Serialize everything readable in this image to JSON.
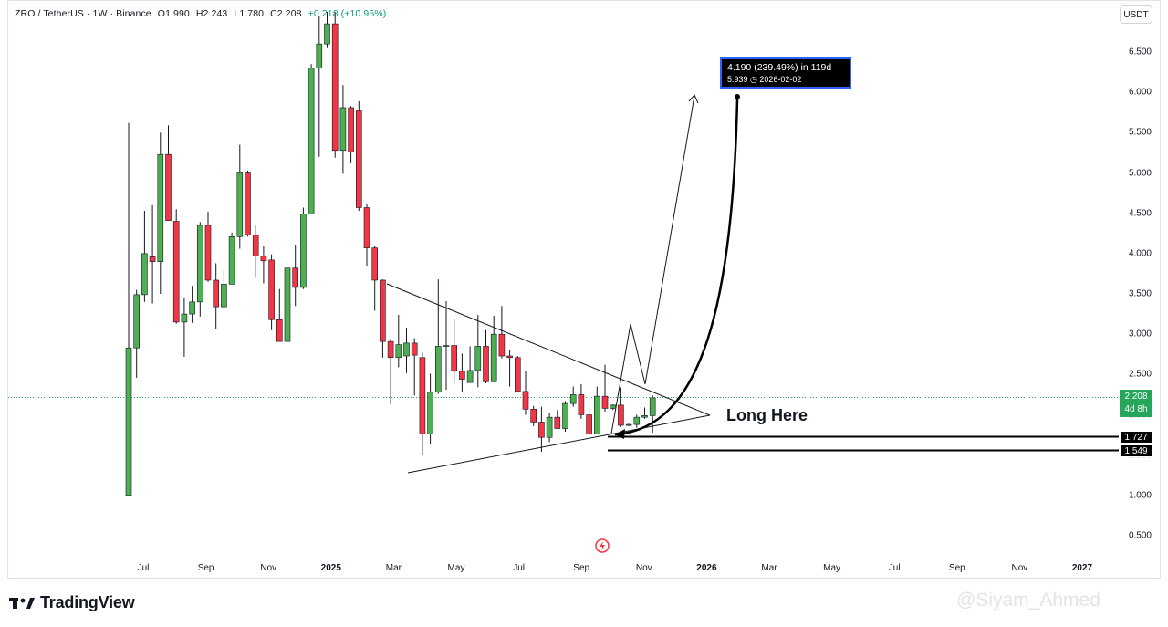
{
  "header": {
    "symbol": "ZRO / TetherUS · 1W · Binance",
    "open": "O1.990",
    "high": "H2.243",
    "low": "L1.780",
    "close": "C2.208",
    "change": "+0.218 (+10.95%)"
  },
  "currency_button": "USDT",
  "current_price": {
    "value": "2.208",
    "countdown": "4d 8h"
  },
  "level_tags": [
    {
      "label": "1.727",
      "value": 1.727
    },
    {
      "label": "1.549",
      "value": 1.549
    }
  ],
  "measure_box": {
    "line1": "4.190 (239.49%) in 119d",
    "line2": "5.939 ◷ 2026-02-02"
  },
  "annotation": "Long Here",
  "branding": {
    "logo_text": "TradingView",
    "watermark": "@Siyam_Ahmed"
  },
  "colors": {
    "up": "#4caf50",
    "down": "#f23645",
    "frame": "#e0e3eb",
    "accent": "#2962ff",
    "label_bg": "#26a65b"
  },
  "chart_data": {
    "type": "candlestick",
    "title": "ZRO / TetherUS · 1W · Binance",
    "y_axis_ticks": [
      {
        "label": "6.500",
        "v": 6.5
      },
      {
        "label": "6.000",
        "v": 6.0
      },
      {
        "label": "5.500",
        "v": 5.5
      },
      {
        "label": "5.000",
        "v": 5.0
      },
      {
        "label": "4.500",
        "v": 4.5
      },
      {
        "label": "4.000",
        "v": 4.0
      },
      {
        "label": "3.500",
        "v": 3.5
      },
      {
        "label": "3.000",
        "v": 3.0
      },
      {
        "label": "2.500",
        "v": 2.5
      },
      {
        "label": "2.000",
        "v": 2.0
      },
      {
        "label": "1.500",
        "v": 1.5
      },
      {
        "label": "1.000",
        "v": 1.0
      },
      {
        "label": "0.500",
        "v": 0.5
      }
    ],
    "x_axis_ticks": [
      {
        "label": "Jul",
        "bold": false
      },
      {
        "label": "Sep",
        "bold": false
      },
      {
        "label": "Nov",
        "bold": false
      },
      {
        "label": "2025",
        "bold": true
      },
      {
        "label": "Mar",
        "bold": false
      },
      {
        "label": "May",
        "bold": false
      },
      {
        "label": "Jul",
        "bold": false
      },
      {
        "label": "Sep",
        "bold": false
      },
      {
        "label": "Nov",
        "bold": false
      },
      {
        "label": "2026",
        "bold": true
      },
      {
        "label": "Mar",
        "bold": false
      },
      {
        "label": "May",
        "bold": false
      },
      {
        "label": "Jul",
        "bold": false
      },
      {
        "label": "Sep",
        "bold": false
      },
      {
        "label": "Nov",
        "bold": false
      },
      {
        "label": "2027",
        "bold": true
      }
    ],
    "candles": [
      {
        "o": 1.0,
        "h": 5.62,
        "l": 1.0,
        "c": 2.83
      },
      {
        "o": 2.83,
        "h": 3.55,
        "l": 2.46,
        "c": 3.49
      },
      {
        "o": 3.49,
        "h": 4.53,
        "l": 3.4,
        "c": 4.0
      },
      {
        "o": 3.96,
        "h": 4.6,
        "l": 3.38,
        "c": 3.9
      },
      {
        "o": 3.9,
        "h": 5.5,
        "l": 3.5,
        "c": 5.23
      },
      {
        "o": 5.23,
        "h": 5.59,
        "l": 4.45,
        "c": 4.41
      },
      {
        "o": 4.4,
        "h": 4.55,
        "l": 3.13,
        "c": 3.15
      },
      {
        "o": 3.15,
        "h": 3.45,
        "l": 2.72,
        "c": 3.25
      },
      {
        "o": 3.25,
        "h": 3.6,
        "l": 3.14,
        "c": 3.4
      },
      {
        "o": 3.4,
        "h": 4.39,
        "l": 3.22,
        "c": 4.35
      },
      {
        "o": 4.35,
        "h": 4.52,
        "l": 3.65,
        "c": 3.67
      },
      {
        "o": 3.67,
        "h": 3.88,
        "l": 3.07,
        "c": 3.34
      },
      {
        "o": 3.34,
        "h": 3.8,
        "l": 3.32,
        "c": 3.62
      },
      {
        "o": 3.62,
        "h": 4.26,
        "l": 3.62,
        "c": 4.21
      },
      {
        "o": 4.21,
        "h": 5.35,
        "l": 4.06,
        "c": 5.0
      },
      {
        "o": 5.0,
        "h": 5.03,
        "l": 4.21,
        "c": 4.23
      },
      {
        "o": 4.23,
        "h": 4.36,
        "l": 3.71,
        "c": 3.97
      },
      {
        "o": 3.97,
        "h": 4.1,
        "l": 3.63,
        "c": 3.91
      },
      {
        "o": 3.92,
        "h": 3.99,
        "l": 3.05,
        "c": 3.18
      },
      {
        "o": 3.18,
        "h": 3.56,
        "l": 2.92,
        "c": 2.91
      },
      {
        "o": 2.91,
        "h": 3.78,
        "l": 2.91,
        "c": 3.82
      },
      {
        "o": 3.82,
        "h": 4.11,
        "l": 3.35,
        "c": 3.58
      },
      {
        "o": 3.58,
        "h": 4.57,
        "l": 3.56,
        "c": 4.49
      },
      {
        "o": 4.49,
        "h": 6.35,
        "l": 4.49,
        "c": 6.3
      },
      {
        "o": 6.3,
        "h": 6.95,
        "l": 5.2,
        "c": 6.6
      },
      {
        "o": 6.6,
        "h": 7.0,
        "l": 6.55,
        "c": 6.85
      },
      {
        "o": 6.85,
        "h": 7.0,
        "l": 5.19,
        "c": 5.28
      },
      {
        "o": 5.28,
        "h": 6.09,
        "l": 4.99,
        "c": 5.81
      },
      {
        "o": 5.81,
        "h": 5.83,
        "l": 5.12,
        "c": 5.26
      },
      {
        "o": 5.77,
        "h": 5.89,
        "l": 4.53,
        "c": 4.57
      },
      {
        "o": 4.57,
        "h": 4.62,
        "l": 3.84,
        "c": 4.07
      },
      {
        "o": 4.07,
        "h": 4.09,
        "l": 3.29,
        "c": 3.67
      },
      {
        "o": 3.67,
        "h": 3.68,
        "l": 2.71,
        "c": 2.91
      },
      {
        "o": 2.91,
        "h": 2.94,
        "l": 2.13,
        "c": 2.71
      },
      {
        "o": 2.71,
        "h": 3.24,
        "l": 2.59,
        "c": 2.87
      },
      {
        "o": 2.73,
        "h": 3.08,
        "l": 2.52,
        "c": 2.89
      },
      {
        "o": 2.89,
        "h": 2.95,
        "l": 2.24,
        "c": 2.74
      },
      {
        "o": 2.71,
        "h": 2.77,
        "l": 1.5,
        "c": 1.76
      },
      {
        "o": 1.76,
        "h": 2.51,
        "l": 1.63,
        "c": 2.28
      },
      {
        "o": 2.28,
        "h": 3.68,
        "l": 2.26,
        "c": 2.85
      },
      {
        "o": 2.85,
        "h": 3.41,
        "l": 2.31,
        "c": 2.86
      },
      {
        "o": 2.86,
        "h": 3.18,
        "l": 2.39,
        "c": 2.54
      },
      {
        "o": 2.54,
        "h": 2.76,
        "l": 2.28,
        "c": 2.44
      },
      {
        "o": 2.4,
        "h": 2.85,
        "l": 2.4,
        "c": 2.55
      },
      {
        "o": 2.55,
        "h": 3.24,
        "l": 2.34,
        "c": 2.85
      },
      {
        "o": 2.85,
        "h": 3.05,
        "l": 2.39,
        "c": 2.41
      },
      {
        "o": 2.41,
        "h": 3.23,
        "l": 2.41,
        "c": 3.0
      },
      {
        "o": 3.0,
        "h": 3.35,
        "l": 2.7,
        "c": 2.73
      },
      {
        "o": 2.73,
        "h": 2.8,
        "l": 2.35,
        "c": 2.71
      },
      {
        "o": 2.71,
        "h": 2.73,
        "l": 2.29,
        "c": 2.29
      },
      {
        "o": 2.29,
        "h": 2.54,
        "l": 2.0,
        "c": 2.07
      },
      {
        "o": 2.07,
        "h": 2.11,
        "l": 1.86,
        "c": 1.91
      },
      {
        "o": 1.91,
        "h": 2.1,
        "l": 1.54,
        "c": 1.72
      },
      {
        "o": 1.72,
        "h": 2.02,
        "l": 1.66,
        "c": 1.97
      },
      {
        "o": 1.97,
        "h": 2.06,
        "l": 1.83,
        "c": 1.83
      },
      {
        "o": 1.83,
        "h": 2.17,
        "l": 1.79,
        "c": 2.14
      },
      {
        "o": 2.14,
        "h": 2.35,
        "l": 2.1,
        "c": 2.25
      },
      {
        "o": 2.25,
        "h": 2.38,
        "l": 1.95,
        "c": 2.0
      },
      {
        "o": 2.0,
        "h": 2.09,
        "l": 1.75,
        "c": 1.76
      },
      {
        "o": 1.76,
        "h": 2.35,
        "l": 1.76,
        "c": 2.23
      },
      {
        "o": 2.23,
        "h": 2.62,
        "l": 2.04,
        "c": 2.08
      },
      {
        "o": 2.08,
        "h": 2.13,
        "l": 2.06,
        "c": 2.12
      },
      {
        "o": 2.12,
        "h": 2.34,
        "l": 1.85,
        "c": 1.87
      },
      {
        "o": 1.87,
        "h": 1.89,
        "l": 1.86,
        "c": 1.88
      },
      {
        "o": 1.88,
        "h": 2.0,
        "l": 1.84,
        "c": 1.97
      },
      {
        "o": 1.97,
        "h": 2.09,
        "l": 1.95,
        "c": 1.99
      },
      {
        "o": 1.99,
        "h": 2.24,
        "l": 1.78,
        "c": 2.21
      }
    ]
  }
}
